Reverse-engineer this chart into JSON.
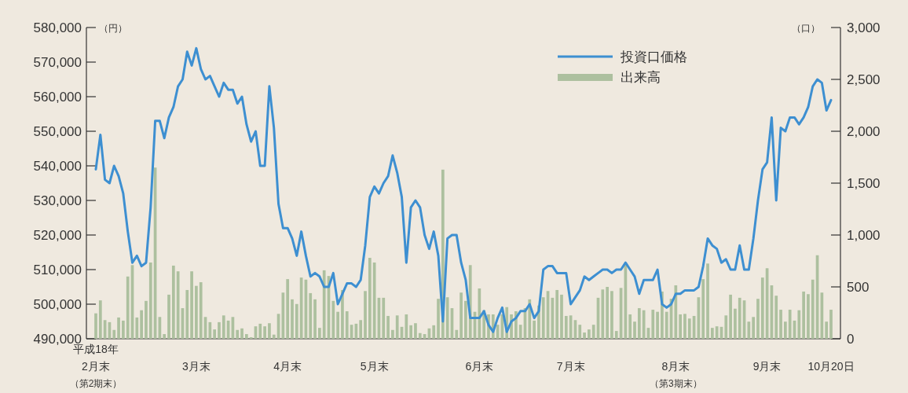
{
  "chart_data": {
    "type": "line",
    "categories": [
      "2月末（第2期末）",
      null,
      null,
      null,
      null,
      null,
      null,
      null,
      null,
      null,
      null,
      null,
      null,
      null,
      null,
      null,
      null,
      null,
      null,
      null,
      null,
      null,
      "3月末",
      null,
      null,
      null,
      null,
      null,
      null,
      null,
      null,
      null,
      null,
      null,
      null,
      null,
      null,
      null,
      null,
      null,
      null,
      null,
      "4月末",
      null,
      null,
      null,
      null,
      null,
      null,
      null,
      null,
      null,
      null,
      null,
      null,
      null,
      null,
      null,
      null,
      null,
      null,
      "5月末",
      null,
      null,
      null,
      null,
      null,
      null,
      null,
      null,
      null,
      null,
      null,
      null,
      null,
      null,
      null,
      null,
      null,
      null,
      null,
      null,
      null,
      null,
      "6月末",
      null,
      null,
      null,
      null,
      null,
      null,
      null,
      null,
      null,
      null,
      null,
      null,
      null,
      null,
      null,
      null,
      null,
      null,
      null,
      "7月末",
      null,
      null,
      null,
      null,
      null,
      null,
      null,
      null,
      null,
      null,
      null,
      null,
      null,
      null,
      null,
      null,
      null,
      null,
      null,
      null,
      null,
      null,
      "8月末（第3期末）",
      null,
      null,
      null,
      null,
      null,
      null,
      null,
      null,
      null,
      null,
      null,
      null,
      null,
      null,
      null,
      null,
      null,
      null,
      null,
      "9月末",
      null,
      null,
      null,
      null,
      null,
      null,
      null,
      null,
      null,
      null,
      null,
      null,
      null,
      "10月20日"
    ],
    "annotations": [
      "平成18年"
    ],
    "ylabel": "（円）",
    "y2label": "（口）",
    "ylim": [
      490000,
      580000
    ],
    "yticks": [
      {
        "value": 490000,
        "label": "490,000"
      },
      {
        "value": 500000,
        "label": "500,000"
      },
      {
        "value": 510000,
        "label": "510,000"
      },
      {
        "value": 520000,
        "label": "520,000"
      },
      {
        "value": 530000,
        "label": "530,000"
      },
      {
        "value": 540000,
        "label": "540,000"
      },
      {
        "value": 550000,
        "label": "550,000"
      },
      {
        "value": 560000,
        "label": "560,000"
      },
      {
        "value": 570000,
        "label": "570,000"
      },
      {
        "value": 580000,
        "label": "580,000"
      }
    ],
    "y2lim": [
      0,
      3000
    ],
    "y2ticks": [
      0,
      500,
      {
        "value": 1000,
        "label": "1,000"
      },
      {
        "value": 1500,
        "label": "1,500"
      },
      {
        "value": 2000,
        "label": "2,000"
      },
      {
        "value": 2500,
        "label": "2,500"
      },
      {
        "value": 3000,
        "label": "3,000"
      }
    ],
    "legend": "top",
    "series": [
      {
        "name": "投資口価格",
        "color": "#3d8fd1",
        "values": [
          539000,
          549000,
          536000,
          535000,
          540000,
          537000,
          532000,
          521000,
          512000,
          514000,
          511000,
          512000,
          528000,
          553000,
          553000,
          548000,
          554000,
          557000,
          563000,
          565000,
          573000,
          569000,
          574000,
          568000,
          565000,
          566000,
          563000,
          560000,
          564000,
          562000,
          562000,
          558000,
          560000,
          552000,
          547000,
          550000,
          540000,
          540000,
          563000,
          551000,
          529000,
          522000,
          522000,
          519000,
          514000,
          521000,
          514000,
          508000,
          509000,
          508000,
          505000,
          505000,
          509000,
          500000,
          503000,
          506000,
          506000,
          505000,
          507000,
          517000,
          531000,
          534000,
          532000,
          535000,
          537000,
          543000,
          538000,
          531000,
          512000,
          528000,
          530000,
          528000,
          520000,
          516000,
          521000,
          514000,
          495000,
          519000,
          520000,
          520000,
          512000,
          507000,
          496000,
          496000,
          496000,
          498000,
          494000,
          492000,
          496000,
          499000,
          492000,
          495000,
          496000,
          498000,
          498000,
          500000,
          496000,
          498000,
          510000,
          511000,
          511000,
          509000,
          509000,
          509000,
          500000,
          502000,
          504000,
          508000,
          507000,
          508000,
          509000,
          510000,
          510000,
          509000,
          510000,
          510000,
          512000,
          510000,
          508000,
          503000,
          507000,
          507000,
          507000,
          510000,
          500000,
          499000,
          500000,
          503000,
          503000,
          504000,
          504000,
          504000,
          505000,
          511000,
          519000,
          517000,
          516000,
          512000,
          513000,
          510000,
          510000,
          517000,
          510000,
          510000,
          519000,
          530000,
          539000,
          541000,
          554000,
          530000,
          551000,
          550000,
          554000,
          554000,
          552000,
          554000,
          557000,
          563000,
          565000,
          564000,
          556000,
          559000
        ]
      },
      {
        "name": "出来高",
        "type": "bar",
        "axis": "y2",
        "color": "#adc09f",
        "values": [
          245,
          370,
          180,
          160,
          85,
          205,
          175,
          600,
          710,
          205,
          275,
          365,
          735,
          1650,
          210,
          45,
          425,
          705,
          650,
          295,
          470,
          650,
          510,
          545,
          210,
          160,
          90,
          160,
          225,
          175,
          210,
          85,
          100,
          45,
          15,
          120,
          145,
          120,
          150,
          40,
          240,
          445,
          575,
          380,
          335,
          590,
          570,
          440,
          380,
          105,
          660,
          605,
          365,
          260,
          470,
          265,
          135,
          145,
          180,
          460,
          780,
          735,
          395,
          395,
          220,
          85,
          225,
          115,
          235,
          130,
          150,
          55,
          45,
          100,
          130,
          385,
          1630,
          400,
          295,
          85,
          445,
          365,
          710,
          260,
          485,
          275,
          235,
          235,
          135,
          235,
          305,
          235,
          265,
          135,
          295,
          380,
          175,
          320,
          400,
          460,
          395,
          470,
          425,
          220,
          225,
          180,
          135,
          60,
          90,
          135,
          395,
          475,
          500,
          460,
          75,
          490,
          725,
          235,
          165,
          295,
          275,
          105,
          280,
          260,
          455,
          260,
          385,
          515,
          235,
          240,
          195,
          220,
          400,
          575,
          725,
          105,
          120,
          115,
          225,
          425,
          290,
          395,
          370,
          165,
          210,
          385,
          590,
          680,
          515,
          415,
          280,
          165,
          280,
          175,
          275,
          455,
          430,
          570,
          805,
          445,
          165,
          280
        ]
      }
    ]
  }
}
